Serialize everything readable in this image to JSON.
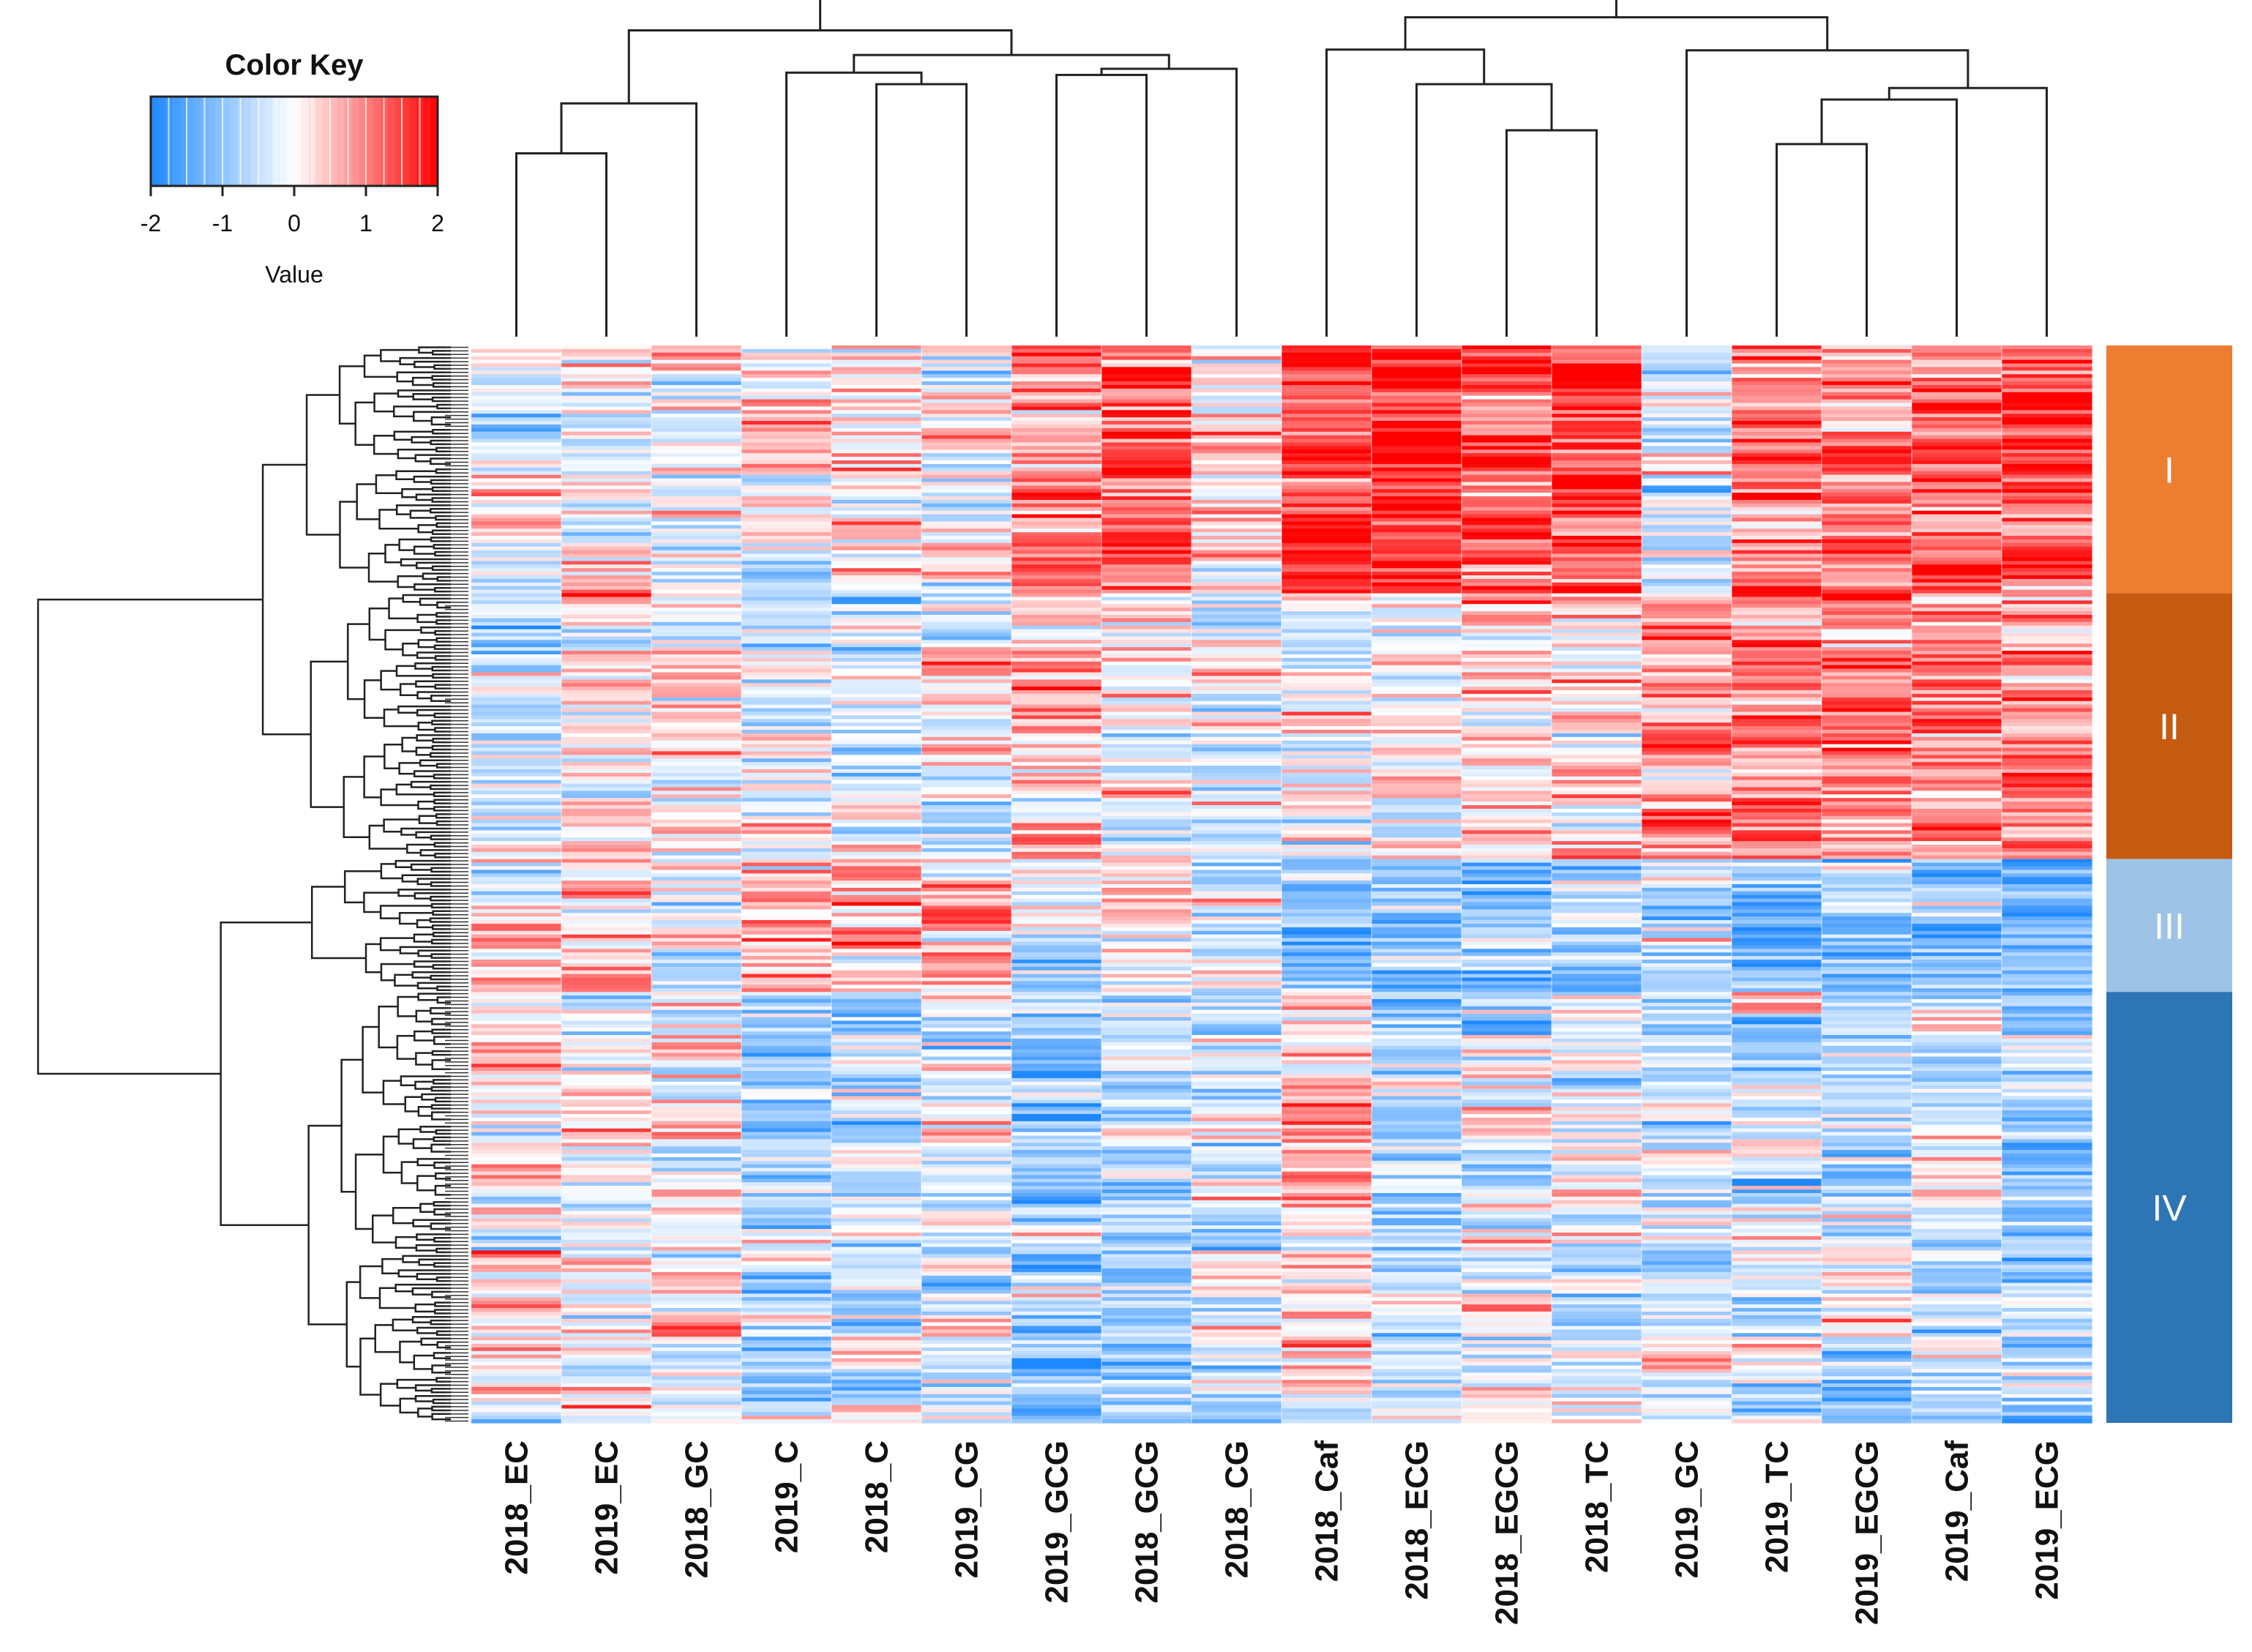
{
  "chart_data": {
    "type": "heatmap",
    "title": "",
    "color_key": {
      "title": "Color Key",
      "xlabel": "Value",
      "ticks": [
        "-2",
        "-1",
        "0",
        "1",
        "2"
      ],
      "range": [
        -2,
        2
      ],
      "colors": {
        "low": "#1e88ff",
        "mid": "#ffffff",
        "high": "#ff0000"
      }
    },
    "columns": [
      "2018_EC",
      "2019_EC",
      "2018_GC",
      "2019_C",
      "2018_C",
      "2019_CG",
      "2019_GCG",
      "2018_GCG",
      "2018_CG",
      "2018_Caf",
      "2018_ECG",
      "2018_EGCG",
      "2018_TC",
      "2019_GC",
      "2019_TC",
      "2019_EGCG",
      "2019_Caf",
      "2019_ECG"
    ],
    "row_count": 300,
    "clusters": [
      {
        "label": "I",
        "color": "#ed7d31",
        "row_fraction": 0.23,
        "column_mean": [
          -0.2,
          -0.1,
          0.1,
          -0.1,
          0.0,
          0.2,
          1.0,
          1.1,
          0.3,
          1.3,
          1.5,
          1.5,
          1.6,
          -0.3,
          1.2,
          1.2,
          1.3,
          1.2
        ]
      },
      {
        "label": "II",
        "color": "#c55a11",
        "row_fraction": 0.245,
        "column_mean": [
          -0.3,
          0.2,
          -0.1,
          0.0,
          -0.2,
          -0.1,
          0.5,
          0.1,
          -0.2,
          0.1,
          -0.2,
          0.5,
          0.4,
          0.6,
          1.0,
          1.1,
          1.0,
          1.0
        ]
      },
      {
        "label": "III",
        "color": "#9dc3e6",
        "row_fraction": 0.125,
        "column_mean": [
          0.4,
          0.7,
          -0.3,
          0.7,
          0.4,
          0.5,
          -0.3,
          -0.2,
          -0.3,
          -0.8,
          -0.9,
          -0.9,
          -0.7,
          -0.6,
          -0.9,
          -1.0,
          -1.1,
          -1.0
        ]
      },
      {
        "label": "IV",
        "color": "#2e75b6",
        "row_fraction": 0.4,
        "column_mean": [
          0.2,
          0.0,
          0.0,
          -0.6,
          -0.4,
          -0.3,
          -0.7,
          -0.5,
          -0.3,
          0.3,
          -0.5,
          -0.4,
          -0.3,
          -0.4,
          -0.5,
          -0.4,
          -0.4,
          -0.7
        ]
      }
    ],
    "column_dendrogram": "complete",
    "row_dendrogram": "complete"
  }
}
